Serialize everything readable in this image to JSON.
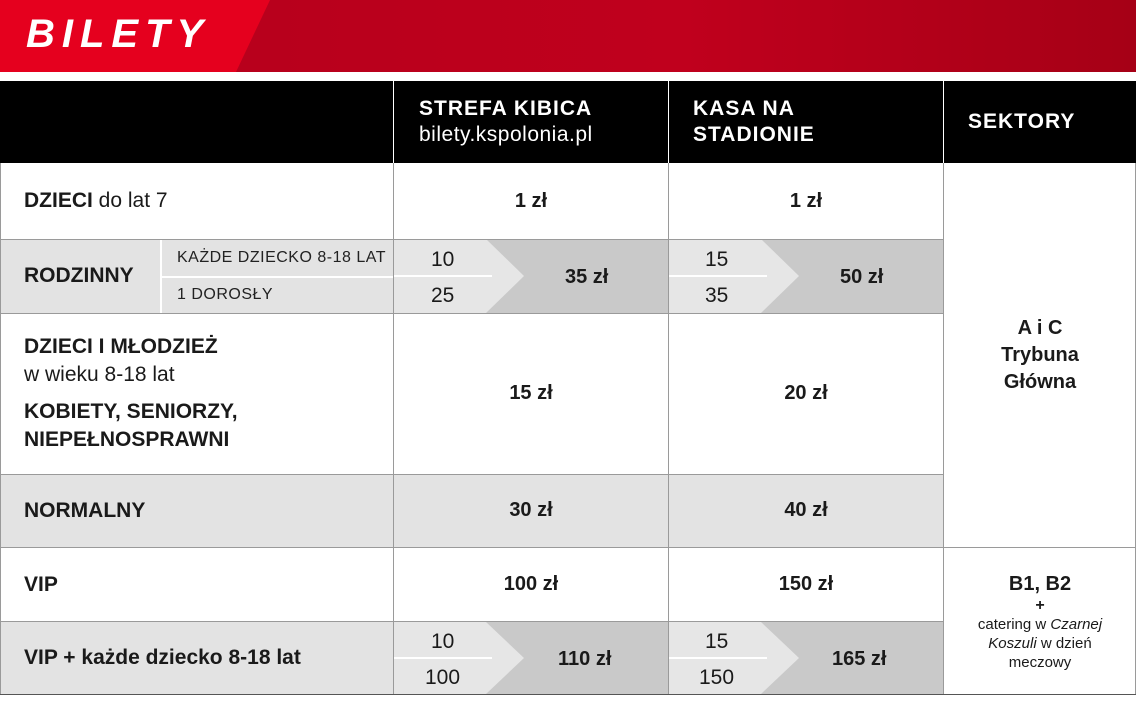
{
  "banner": {
    "title": "BILETY"
  },
  "header": {
    "col1_title": "STREFA KIBICA",
    "col1_sub": "bilety.kspolonia.pl",
    "col2_line1": "KASA NA",
    "col2_line2": "STADIONIE",
    "col3_title": "SEKTORY"
  },
  "rows": {
    "dzieci": {
      "label_bold": "DZIECI",
      "label_rest": " do lat 7",
      "p1": "1 zł",
      "p2": "1 zł"
    },
    "rodzinny": {
      "label": "RODZINNY",
      "sub1": "KAŻDE DZIECKO 8-18 LAT",
      "sub2": "1 DOROSŁY",
      "p1_a": "10",
      "p1_b": "25",
      "p1_total": "35 zł",
      "p2_a": "15",
      "p2_b": "35",
      "p2_total": "50 zł"
    },
    "mlodziez": {
      "line1": "DZIECI I MŁODZIEŻ",
      "line2": "w wieku 8-18 lat",
      "line3": "KOBIETY, SENIORZY,",
      "line4": "NIEPEŁNOSPRAWNI",
      "p1": "15 zł",
      "p2": "20 zł"
    },
    "normalny": {
      "label": "NORMALNY",
      "p1": "30 zł",
      "p2": "40 zł"
    },
    "vip": {
      "label": "VIP",
      "p1": "100 zł",
      "p2": "150 zł"
    },
    "vip_dziecko": {
      "label": "VIP + każde dziecko 8-18 lat",
      "p1_a": "10",
      "p1_b": "100",
      "p1_total": "110 zł",
      "p2_a": "15",
      "p2_b": "150",
      "p2_total": "165 zł"
    }
  },
  "sectors": {
    "ac_line1": "A i C",
    "ac_line2": "Trybuna",
    "ac_line3": "Główna",
    "b_line1": "B1, B2",
    "b_plus": "+",
    "b_line2_pre": "catering w ",
    "b_line2_em": "Czarnej",
    "b_line3_em": "Koszuli",
    "b_line3_post": " w dzień",
    "b_line4": "meczowy"
  },
  "colors": {
    "accent_red": "#c0001d",
    "header_black": "#000000",
    "row_grey": "#e3e3e3",
    "split_grey": "#c9c9c9"
  }
}
